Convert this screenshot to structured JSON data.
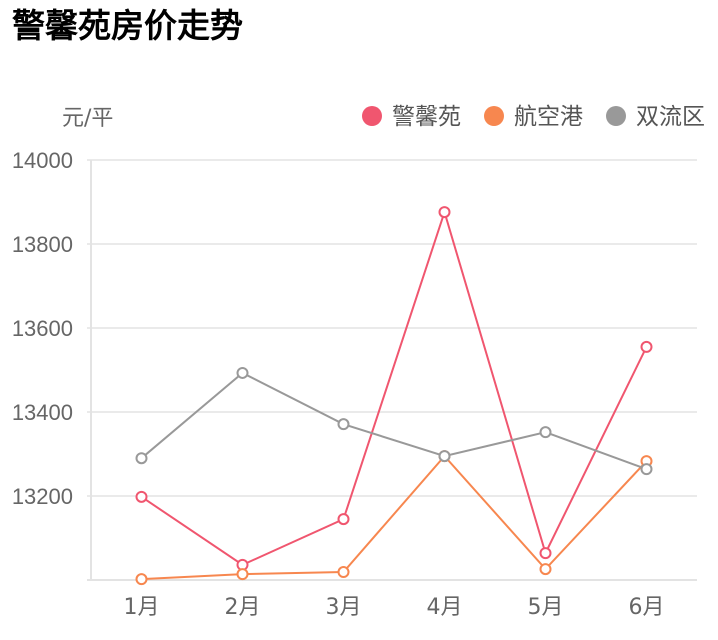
{
  "title": "警馨苑房价走势",
  "chart_data": {
    "type": "line",
    "title": "警馨苑房价走势",
    "xlabel": "",
    "ylabel": "元/平",
    "categories": [
      "1月",
      "2月",
      "3月",
      "4月",
      "5月",
      "6月"
    ],
    "series": [
      {
        "name": "警馨苑",
        "color": "#f0566f",
        "values": [
          13198,
          13036,
          13145,
          13876,
          13064,
          13555
        ]
      },
      {
        "name": "航空港",
        "color": "#f7874f",
        "values": [
          13002,
          13014,
          13019,
          13295,
          13026,
          13283
        ]
      },
      {
        "name": "双流区",
        "color": "#999999",
        "values": [
          13290,
          13493,
          13371,
          13295,
          13352,
          13264
        ]
      }
    ],
    "ylim": [
      13000,
      14000
    ],
    "yticks": [
      "14000",
      "13800",
      "13600",
      "13400",
      "13200"
    ],
    "grid": true,
    "legend_position": "top-right"
  },
  "legend": {
    "items": [
      {
        "label": "警馨苑",
        "color": "#f0566f"
      },
      {
        "label": "航空港",
        "color": "#f7874f"
      },
      {
        "label": "双流区",
        "color": "#999999"
      }
    ]
  },
  "axis": {
    "unit": "元/平"
  }
}
